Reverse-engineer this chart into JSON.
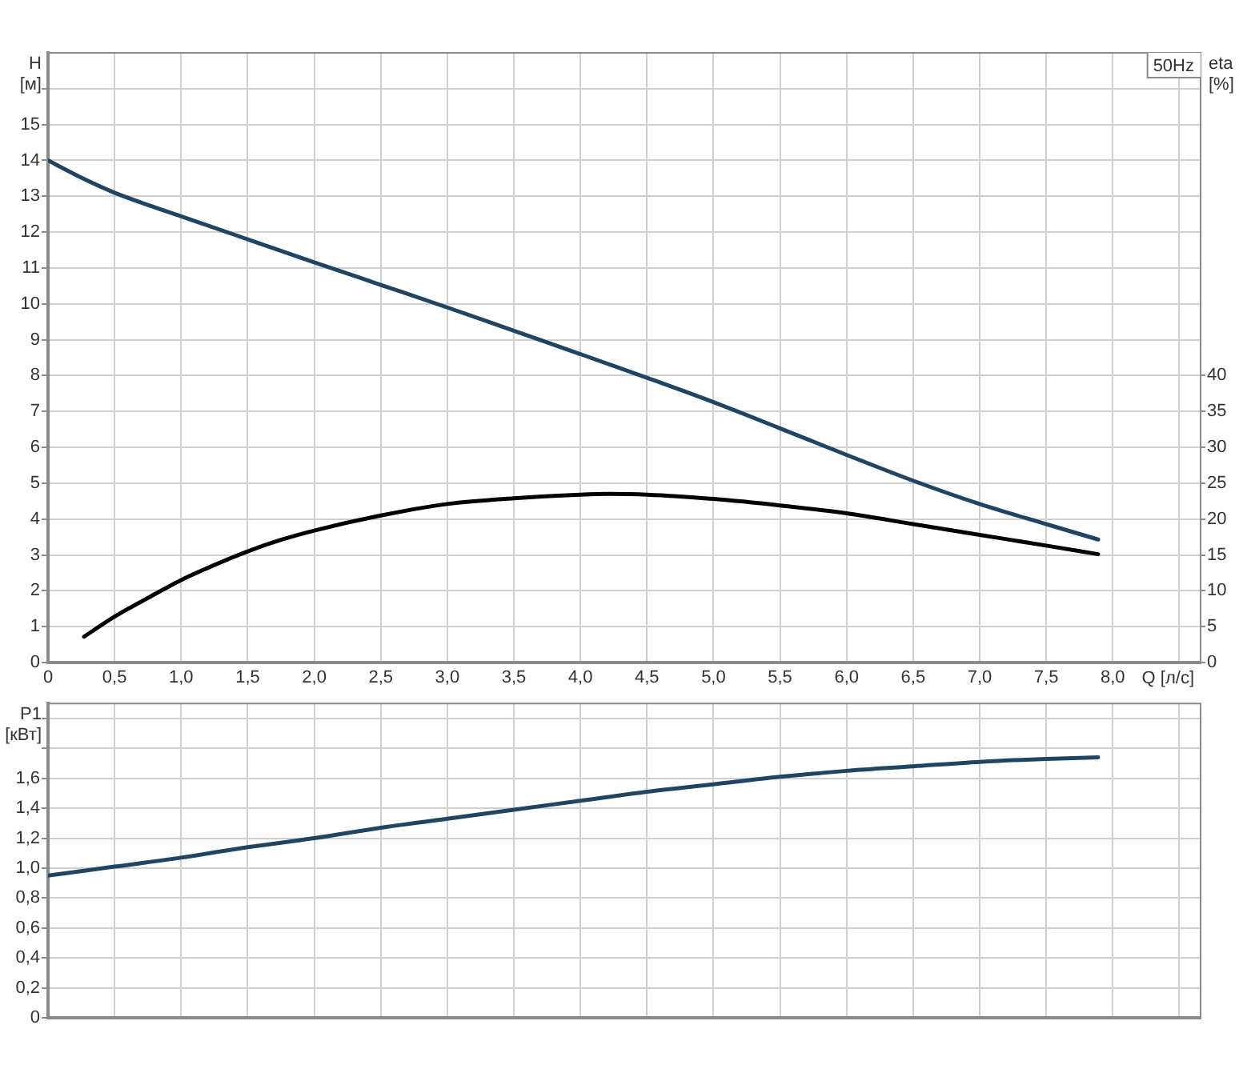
{
  "chart_data": [
    {
      "type": "line",
      "xlabel": "Q [л/с]",
      "ylabel": "H [м]",
      "y2label": "eta [%]",
      "annotations": [
        "50Hz"
      ],
      "xlim": [
        0,
        8.66
      ],
      "xticks": [
        0,
        {
          "value": 0.5,
          "label": "0,5"
        },
        {
          "value": 1,
          "label": "1,0"
        },
        {
          "value": 1.5,
          "label": "1,5"
        },
        {
          "value": 2,
          "label": "2,0"
        },
        {
          "value": 2.5,
          "label": "2,5"
        },
        {
          "value": 3,
          "label": "3,0"
        },
        {
          "value": 3.5,
          "label": "3,5"
        },
        {
          "value": 4,
          "label": "4,0"
        },
        {
          "value": 4.5,
          "label": "4,5"
        },
        {
          "value": 5,
          "label": "5,0"
        },
        {
          "value": 5.5,
          "label": "5,5"
        },
        {
          "value": 6,
          "label": "6,0"
        },
        {
          "value": 6.5,
          "label": "6,5"
        },
        {
          "value": 7,
          "label": "7,0"
        },
        {
          "value": 7.5,
          "label": "7,5"
        },
        {
          "value": 8,
          "label": "8,0"
        },
        {
          "value": 8.5,
          "label": null
        }
      ],
      "ylim": [
        0,
        17
      ],
      "yticks": [
        0,
        1,
        2,
        3,
        4,
        5,
        6,
        7,
        8,
        9,
        10,
        11,
        12,
        13,
        14,
        15,
        {
          "value": 16,
          "label": null
        }
      ],
      "y2lim": [
        0,
        85
      ],
      "y2ticks": [
        0,
        5,
        10,
        15,
        20,
        25,
        30,
        35,
        40
      ],
      "grid": true,
      "marker": "none",
      "series": [
        {
          "color": "#1f4563",
          "x": [
            0,
            0.25,
            0.5,
            0.75,
            1,
            1.5,
            2,
            2.5,
            3,
            3.5,
            4,
            4.5,
            5,
            5.5,
            6,
            6.5,
            7,
            7.5,
            7.89
          ],
          "values": [
            14.0,
            13.52,
            13.1,
            12.76,
            12.44,
            11.8,
            11.16,
            10.53,
            9.9,
            9.25,
            8.6,
            7.94,
            7.26,
            6.53,
            5.79,
            5.07,
            4.42,
            3.86,
            3.43
          ]
        },
        {
          "color": "#000000",
          "axis": "y2",
          "x": [
            0.27,
            0.5,
            0.75,
            1,
            1.25,
            1.5,
            1.75,
            2,
            2.5,
            3,
            3.5,
            4,
            4.2,
            4.5,
            5,
            5.5,
            6,
            6.5,
            7,
            7.5,
            7.89
          ],
          "values": [
            3.6,
            6.4,
            9.0,
            11.5,
            13.6,
            15.5,
            17.1,
            18.4,
            20.5,
            22.1,
            22.9,
            23.4,
            23.5,
            23.4,
            22.8,
            21.9,
            20.8,
            19.3,
            17.8,
            16.3,
            15.1
          ]
        }
      ]
    },
    {
      "type": "line",
      "ylabel": "P1 [кВт]",
      "tick_labels": "y",
      "xlim": [
        0,
        8.66
      ],
      "xticks": [
        0,
        0.5,
        1,
        1.5,
        2,
        2.5,
        3,
        3.5,
        4,
        4.5,
        5,
        5.5,
        6,
        6.5,
        7,
        7.5,
        8,
        8.5
      ],
      "ylim": [
        0,
        2.1
      ],
      "yticks": [
        0,
        {
          "value": 0.2,
          "label": "0,2"
        },
        {
          "value": 0.4,
          "label": "0,4"
        },
        {
          "value": 0.6,
          "label": "0,6"
        },
        {
          "value": 0.8,
          "label": "0,8"
        },
        {
          "value": 1,
          "label": "1,0"
        },
        {
          "value": 1.2,
          "label": "1,2"
        },
        {
          "value": 1.4,
          "label": "1,4"
        },
        {
          "value": 1.6,
          "label": "1,6"
        },
        {
          "value": 1.8,
          "label": null
        },
        {
          "value": 2,
          "label": null
        }
      ],
      "grid": true,
      "marker": "none",
      "series": [
        {
          "color": "#1f4563",
          "x": [
            0,
            0.5,
            1,
            1.5,
            2,
            2.5,
            3,
            3.5,
            4,
            4.5,
            5,
            5.5,
            6,
            6.5,
            7,
            7.5,
            7.89
          ],
          "values": [
            0.95,
            1.01,
            1.07,
            1.14,
            1.2,
            1.27,
            1.33,
            1.39,
            1.45,
            1.51,
            1.56,
            1.61,
            1.65,
            1.68,
            1.71,
            1.73,
            1.74
          ]
        }
      ]
    }
  ]
}
